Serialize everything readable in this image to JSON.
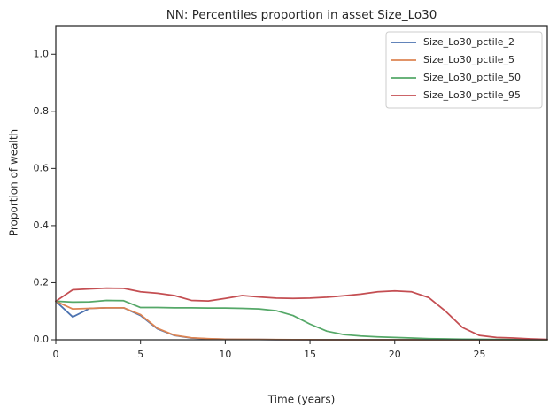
{
  "chart_data": {
    "type": "line",
    "title": "NN: Percentiles proportion in asset Size_Lo30",
    "xlabel": "Time (years)",
    "ylabel": "Proportion of wealth",
    "xlim": [
      0,
      29
    ],
    "ylim": [
      0,
      1.1
    ],
    "xticks": [
      0,
      5,
      10,
      15,
      20,
      25
    ],
    "yticks": [
      0.0,
      0.2,
      0.4,
      0.6,
      0.8,
      1.0
    ],
    "xtick_labels": [
      "0",
      "5",
      "10",
      "15",
      "20",
      "25"
    ],
    "ytick_labels": [
      "0.0",
      "0.2",
      "0.4",
      "0.6",
      "0.8",
      "1.0"
    ],
    "grid": false,
    "legend_position": "top-right",
    "x": [
      0,
      1,
      2,
      3,
      4,
      5,
      6,
      7,
      8,
      9,
      10,
      11,
      12,
      13,
      14,
      15,
      16,
      17,
      18,
      19,
      20,
      21,
      22,
      23,
      24,
      25,
      26,
      27,
      28,
      29
    ],
    "series": [
      {
        "name": "Size_Lo30_pctile_2",
        "color": "#4c72b0",
        "values": [
          0.135,
          0.08,
          0.11,
          0.112,
          0.112,
          0.085,
          0.038,
          0.015,
          0.006,
          0.003,
          0.002,
          0.001,
          0.001,
          0.0005,
          0.0003,
          0.0002,
          0.0001,
          0.0001,
          0,
          0,
          0,
          0,
          0,
          0,
          0,
          0,
          0,
          0,
          0,
          0
        ]
      },
      {
        "name": "Size_Lo30_pctile_5",
        "color": "#dd8452",
        "values": [
          0.135,
          0.108,
          0.11,
          0.112,
          0.112,
          0.088,
          0.04,
          0.016,
          0.007,
          0.004,
          0.002,
          0.0015,
          0.001,
          0.0008,
          0.0005,
          0.0003,
          0.0002,
          0.0001,
          0,
          0,
          0,
          0,
          0,
          0,
          0,
          0,
          0,
          0,
          0,
          0
        ]
      },
      {
        "name": "Size_Lo30_pctile_50",
        "color": "#55a868",
        "values": [
          0.135,
          0.132,
          0.133,
          0.138,
          0.137,
          0.113,
          0.113,
          0.112,
          0.112,
          0.111,
          0.111,
          0.11,
          0.108,
          0.102,
          0.085,
          0.055,
          0.03,
          0.018,
          0.013,
          0.01,
          0.008,
          0.006,
          0.004,
          0.003,
          0.002,
          0.0015,
          0.001,
          0.0008,
          0.0005,
          0.0003
        ]
      },
      {
        "name": "Size_Lo30_pctile_95",
        "color": "#c44e52",
        "values": [
          0.135,
          0.175,
          0.178,
          0.181,
          0.18,
          0.168,
          0.163,
          0.155,
          0.138,
          0.136,
          0.145,
          0.155,
          0.15,
          0.146,
          0.145,
          0.146,
          0.149,
          0.154,
          0.16,
          0.168,
          0.171,
          0.168,
          0.148,
          0.1,
          0.043,
          0.015,
          0.008,
          0.006,
          0.003,
          0.001
        ]
      }
    ]
  }
}
